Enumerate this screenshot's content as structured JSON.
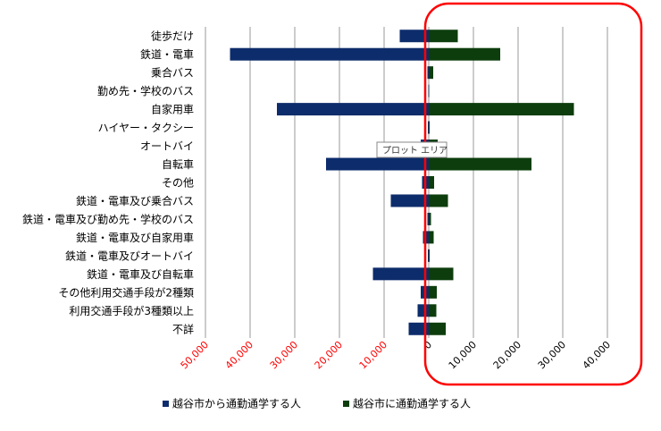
{
  "chart_data": {
    "type": "bar",
    "orientation": "horizontal",
    "layout": "diverging",
    "categories": [
      "徒歩だけ",
      "鉄道・電車",
      "乗合バス",
      "勤め先・学校のバス",
      "自家用車",
      "ハイヤー・タクシー",
      "オートバイ",
      "自転車",
      "その他",
      "鉄道・電車及び乗合バス",
      "鉄道・電車及び勤め先・学校のバス",
      "鉄道・電車及び自家用車",
      "鉄道・電車及びオートバイ",
      "鉄道・電車及び自転車",
      "その他利用交通手段が2種類",
      "利用交通手段が3種類以上",
      "不詳"
    ],
    "series": [
      {
        "name": "越谷市から通勤通学する人",
        "color": "#0d2c6b",
        "direction": "left",
        "values": [
          6500,
          44500,
          300,
          100,
          34000,
          200,
          1800,
          23000,
          1500,
          8500,
          300,
          1300,
          200,
          12500,
          1800,
          2500,
          4500
        ]
      },
      {
        "name": "越谷市に通勤通学する人",
        "color": "#0d3d0d",
        "direction": "right",
        "values": [
          6500,
          16000,
          1000,
          100,
          32500,
          200,
          2000,
          23000,
          1200,
          4300,
          500,
          1100,
          200,
          5500,
          1800,
          1700,
          3800
        ]
      }
    ],
    "xlim": [
      -50000,
      40000
    ],
    "ticks": [
      {
        "value": -50000,
        "label": "50,000",
        "color": "#ff0000"
      },
      {
        "value": -40000,
        "label": "40,000",
        "color": "#ff0000"
      },
      {
        "value": -30000,
        "label": "30,000",
        "color": "#ff0000"
      },
      {
        "value": -20000,
        "label": "20,000",
        "color": "#ff0000"
      },
      {
        "value": -10000,
        "label": "10,000",
        "color": "#ff0000"
      },
      {
        "value": 0,
        "label": "0",
        "color": "#000000"
      },
      {
        "value": 10000,
        "label": "10,000",
        "color": "#000000"
      },
      {
        "value": 20000,
        "label": "20,000",
        "color": "#000000"
      },
      {
        "value": 30000,
        "label": "30,000",
        "color": "#000000"
      },
      {
        "value": 40000,
        "label": "40,000",
        "color": "#000000"
      }
    ],
    "grid": true,
    "legend_position": "bottom",
    "tooltip": "プロット エリア",
    "highlight_color": "#ff0000"
  }
}
